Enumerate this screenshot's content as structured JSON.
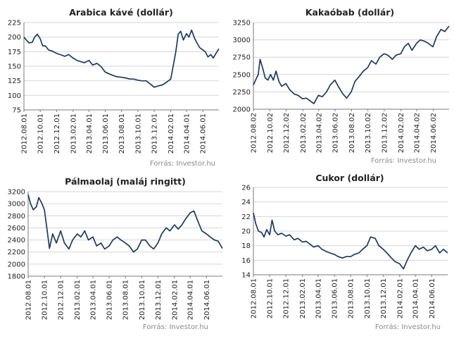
{
  "chart_data": [
    {
      "type": "line",
      "title": "Arabica kávé (dollár)",
      "source": "Forrás: Investor.hu",
      "ylim": [
        75,
        225
      ],
      "yticks": [
        75,
        100,
        125,
        150,
        175,
        200,
        225
      ],
      "xlim": [
        "2012-08-01",
        "2014-07-31"
      ],
      "xticks": [
        "2012.08.01",
        "2012.10.01",
        "2012.12.01",
        "2013.02.01",
        "2013.04.01",
        "2013.06.01",
        "2013.08.01",
        "2013.10.01",
        "2013.12.01",
        "2014.02.01",
        "2014.04.01",
        "2014.06.01"
      ],
      "grid": true,
      "legend": "none",
      "series": [
        {
          "x": [
            "2012-08-01",
            "2012-08-10",
            "2012-08-20",
            "2012-09-01",
            "2012-09-10",
            "2012-09-20",
            "2012-10-01",
            "2012-10-10",
            "2012-10-20",
            "2012-11-01",
            "2012-11-15",
            "2012-12-01",
            "2012-12-15",
            "2013-01-01",
            "2013-01-15",
            "2013-02-01",
            "2013-02-15",
            "2013-03-01",
            "2013-03-15",
            "2013-04-01",
            "2013-04-15",
            "2013-05-01",
            "2013-05-15",
            "2013-06-01",
            "2013-06-15",
            "2013-07-01",
            "2013-07-15",
            "2013-08-01",
            "2013-08-15",
            "2013-09-01",
            "2013-09-15",
            "2013-10-01",
            "2013-10-15",
            "2013-11-01",
            "2013-11-15",
            "2013-12-01",
            "2013-12-15",
            "2014-01-01",
            "2014-01-15",
            "2014-02-01",
            "2014-02-10",
            "2014-02-20",
            "2014-03-01",
            "2014-03-10",
            "2014-03-20",
            "2014-04-01",
            "2014-04-10",
            "2014-04-20",
            "2014-05-01",
            "2014-05-10",
            "2014-05-20",
            "2014-06-01",
            "2014-06-10",
            "2014-06-20",
            "2014-07-01",
            "2014-07-10",
            "2014-07-20",
            "2014-07-31"
          ],
          "values": [
            200,
            195,
            190,
            191,
            200,
            205,
            197,
            185,
            185,
            178,
            176,
            172,
            170,
            167,
            170,
            164,
            160,
            158,
            156,
            160,
            152,
            155,
            150,
            140,
            137,
            134,
            132,
            131,
            130,
            128,
            128,
            126,
            125,
            125,
            120,
            114,
            116,
            118,
            122,
            128,
            150,
            175,
            205,
            210,
            195,
            206,
            200,
            212,
            198,
            190,
            182,
            178,
            175,
            166,
            170,
            164,
            172,
            180
          ]
        }
      ]
    },
    {
      "type": "line",
      "title": "Kakaóbab (dollár)",
      "source": "Forrás: Investor.hu",
      "ylim": [
        2000,
        3250
      ],
      "yticks": [
        2000,
        2250,
        2500,
        2750,
        3000,
        3250
      ],
      "xlim": [
        "2012-08-02",
        "2014-07-31"
      ],
      "xticks": [
        "2012.08.02",
        "2012.10.02",
        "2012.12.02",
        "2013.02.02",
        "2013.04.02",
        "2013.06.02",
        "2013.08.02",
        "2013.10.02",
        "2013.12.02",
        "2014.02.02",
        "2014.04.02",
        "2014.06.02"
      ],
      "grid": true,
      "legend": "none",
      "series": [
        {
          "x": [
            "2012-08-02",
            "2012-08-10",
            "2012-08-20",
            "2012-08-27",
            "2012-09-05",
            "2012-09-15",
            "2012-09-25",
            "2012-10-05",
            "2012-10-15",
            "2012-10-25",
            "2012-11-05",
            "2012-11-15",
            "2012-12-01",
            "2012-12-15",
            "2013-01-01",
            "2013-01-15",
            "2013-02-01",
            "2013-02-15",
            "2013-03-01",
            "2013-03-15",
            "2013-04-01",
            "2013-04-15",
            "2013-05-01",
            "2013-05-15",
            "2013-06-01",
            "2013-06-15",
            "2013-07-01",
            "2013-07-15",
            "2013-08-01",
            "2013-08-15",
            "2013-09-01",
            "2013-09-15",
            "2013-10-01",
            "2013-10-15",
            "2013-11-01",
            "2013-11-15",
            "2013-12-01",
            "2013-12-15",
            "2014-01-01",
            "2014-01-15",
            "2014-02-01",
            "2014-02-15",
            "2014-03-01",
            "2014-03-15",
            "2014-04-01",
            "2014-04-15",
            "2014-05-01",
            "2014-05-15",
            "2014-06-01",
            "2014-06-15",
            "2014-07-01",
            "2014-07-15",
            "2014-07-31"
          ],
          "values": [
            2350,
            2420,
            2500,
            2720,
            2600,
            2450,
            2420,
            2500,
            2420,
            2550,
            2400,
            2330,
            2370,
            2280,
            2220,
            2200,
            2150,
            2160,
            2120,
            2080,
            2200,
            2180,
            2250,
            2350,
            2420,
            2320,
            2220,
            2160,
            2250,
            2400,
            2480,
            2550,
            2600,
            2700,
            2650,
            2750,
            2800,
            2780,
            2720,
            2780,
            2800,
            2900,
            2950,
            2850,
            2950,
            3000,
            2980,
            2950,
            2900,
            3050,
            3150,
            3120,
            3200
          ]
        }
      ]
    },
    {
      "type": "line",
      "title": "Pálmaolaj (maláj ringitt)",
      "source": "Forrás: Investor.hu",
      "ylim": [
        1800,
        3200
      ],
      "yticks": [
        1800,
        2000,
        2200,
        2400,
        2600,
        2800,
        3000,
        3200
      ],
      "xlim": [
        "2012-08-01",
        "2014-07-31"
      ],
      "xticks": [
        "2012.08.01",
        "2012.10.01",
        "2012.12.01",
        "2013.02.01",
        "2013.04.01",
        "2013.06.01",
        "2013.08.01",
        "2013.10.01",
        "2013.12.01",
        "2014.02.01",
        "2014.04.01",
        "2014.06.01"
      ],
      "grid": true,
      "legend": "none",
      "series": [
        {
          "x": [
            "2012-08-01",
            "2012-08-10",
            "2012-08-20",
            "2012-09-01",
            "2012-09-10",
            "2012-09-20",
            "2012-10-01",
            "2012-10-10",
            "2012-10-20",
            "2012-11-01",
            "2012-11-15",
            "2012-12-01",
            "2012-12-15",
            "2013-01-01",
            "2013-01-15",
            "2013-02-01",
            "2013-02-15",
            "2013-03-01",
            "2013-03-15",
            "2013-04-01",
            "2013-04-15",
            "2013-05-01",
            "2013-05-15",
            "2013-06-01",
            "2013-06-15",
            "2013-07-01",
            "2013-07-15",
            "2013-08-01",
            "2013-08-15",
            "2013-09-01",
            "2013-09-15",
            "2013-10-01",
            "2013-10-15",
            "2013-11-01",
            "2013-11-15",
            "2013-12-01",
            "2013-12-15",
            "2014-01-01",
            "2014-01-15",
            "2014-02-01",
            "2014-02-15",
            "2014-03-01",
            "2014-03-15",
            "2014-04-01",
            "2014-04-15",
            "2014-05-01",
            "2014-05-15",
            "2014-06-01",
            "2014-06-15",
            "2014-07-01",
            "2014-07-15",
            "2014-07-31"
          ],
          "values": [
            3150,
            3000,
            2900,
            2950,
            3100,
            3020,
            2900,
            2600,
            2260,
            2500,
            2350,
            2550,
            2350,
            2250,
            2400,
            2500,
            2450,
            2550,
            2400,
            2450,
            2300,
            2350,
            2250,
            2300,
            2400,
            2450,
            2400,
            2350,
            2300,
            2200,
            2250,
            2400,
            2400,
            2300,
            2250,
            2350,
            2500,
            2600,
            2550,
            2650,
            2580,
            2650,
            2750,
            2850,
            2880,
            2700,
            2550,
            2500,
            2450,
            2400,
            2380,
            2260
          ]
        }
      ]
    },
    {
      "type": "line",
      "title": "Cukor (dollár)",
      "source": "Forrás: Investor.hu",
      "ylim": [
        14,
        26
      ],
      "yticks": [
        14,
        16,
        18,
        20,
        22,
        24,
        26
      ],
      "xlim": [
        "2012-08-01",
        "2014-07-31"
      ],
      "xticks": [
        "2012.08.01",
        "2012.10.01",
        "2012.12.01",
        "2013.02.01",
        "2013.04.01",
        "2013.06.01",
        "2013.08.01",
        "2013.10.01",
        "2013.12.01",
        "2014.02.01",
        "2014.04.01",
        "2014.06.01"
      ],
      "grid": true,
      "legend": "none",
      "series": [
        {
          "x": [
            "2012-08-01",
            "2012-08-10",
            "2012-08-20",
            "2012-09-01",
            "2012-09-10",
            "2012-09-20",
            "2012-10-01",
            "2012-10-10",
            "2012-10-20",
            "2012-11-01",
            "2012-11-15",
            "2012-12-01",
            "2012-12-15",
            "2013-01-01",
            "2013-01-15",
            "2013-02-01",
            "2013-02-15",
            "2013-03-01",
            "2013-03-15",
            "2013-04-01",
            "2013-04-15",
            "2013-05-01",
            "2013-05-15",
            "2013-06-01",
            "2013-06-15",
            "2013-07-01",
            "2013-07-15",
            "2013-08-01",
            "2013-08-15",
            "2013-09-01",
            "2013-09-15",
            "2013-10-01",
            "2013-10-15",
            "2013-11-01",
            "2013-11-15",
            "2013-12-01",
            "2013-12-15",
            "2014-01-01",
            "2014-01-15",
            "2014-02-01",
            "2014-02-15",
            "2014-03-01",
            "2014-03-15",
            "2014-04-01",
            "2014-04-15",
            "2014-05-01",
            "2014-05-15",
            "2014-06-01",
            "2014-06-15",
            "2014-07-01",
            "2014-07-15",
            "2014-07-31"
          ],
          "values": [
            22.5,
            21.0,
            20.0,
            19.8,
            19.2,
            20.2,
            19.5,
            21.5,
            20.0,
            19.5,
            19.7,
            19.3,
            19.5,
            18.8,
            19.0,
            18.5,
            18.6,
            18.2,
            17.8,
            18.0,
            17.5,
            17.2,
            17.0,
            16.8,
            16.5,
            16.3,
            16.5,
            16.5,
            16.8,
            17.0,
            17.5,
            18.0,
            19.2,
            19.0,
            18.0,
            17.5,
            17.0,
            16.3,
            15.8,
            15.5,
            14.8,
            16.0,
            17.0,
            18.0,
            17.5,
            17.8,
            17.3,
            17.5,
            18.0,
            17.0,
            17.5,
            17.0
          ]
        }
      ]
    }
  ]
}
